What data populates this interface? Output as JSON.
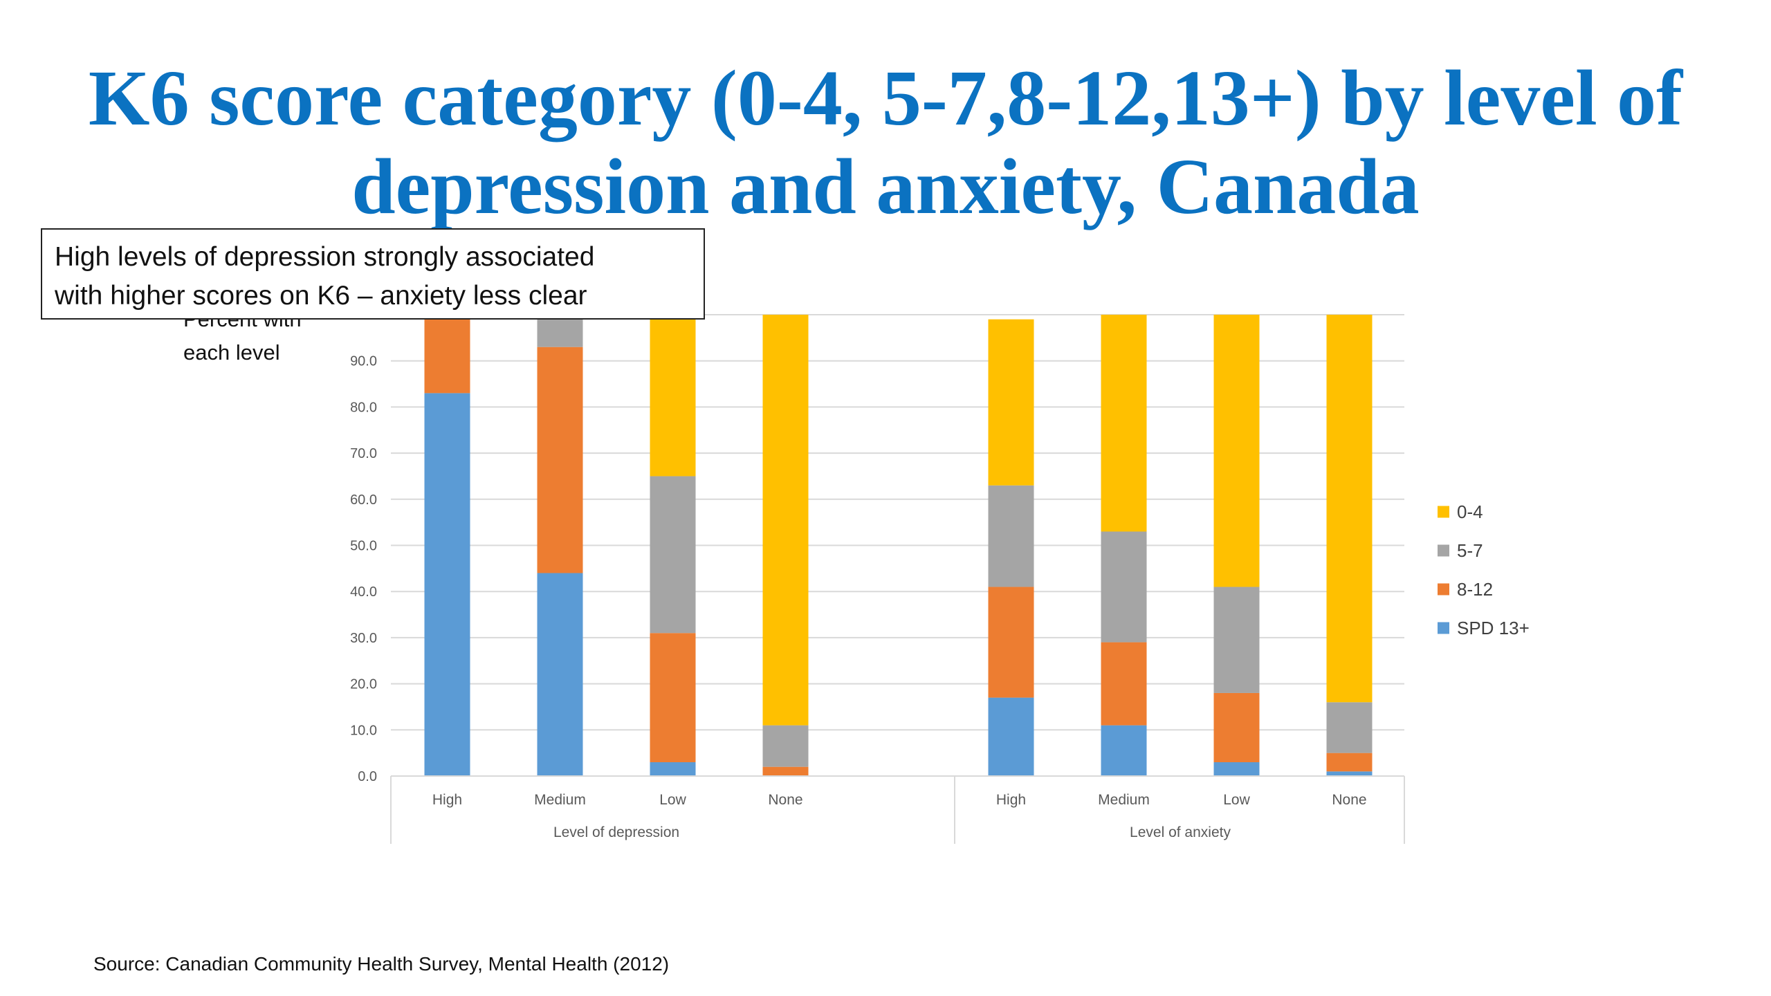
{
  "slide": {
    "title_line1": "K6 score category (0-4, 5-7,8-12,13+) by level of",
    "title_line2": "depression and anxiety, Canada",
    "callout_line1": "High levels of depression strongly associated",
    "callout_line2": "with higher scores on K6 – anxiety less clear",
    "source": "Source: Canadian Community Health Survey, Mental Health (2012)"
  },
  "chart_data": {
    "type": "bar",
    "stacked": true,
    "ylabel_line1": "Percent with",
    "ylabel_line2": "each level",
    "ylim": [
      0,
      100
    ],
    "yticks": [
      "0.0",
      "10.0",
      "20.0",
      "30.0",
      "40.0",
      "50.0",
      "60.0",
      "70.0",
      "80.0",
      "90.0"
    ],
    "ytick_values": [
      0,
      10,
      20,
      30,
      40,
      50,
      60,
      70,
      80,
      90
    ],
    "grid": true,
    "legend_position": "right",
    "groups": [
      {
        "name": "Level of depression",
        "categories": [
          "High",
          "Medium",
          "Low",
          "None"
        ]
      },
      {
        "name": "Level of anxiety",
        "categories": [
          "High",
          "Medium",
          "Low",
          "None"
        ]
      }
    ],
    "series": [
      {
        "name": "SPD 13+",
        "color": "#5B9BD5",
        "values": [
          83,
          44,
          3,
          0,
          17,
          11,
          3,
          1
        ]
      },
      {
        "name": "8-12",
        "color": "#ED7D31",
        "values": [
          17,
          49,
          28,
          2,
          24,
          18,
          15,
          4
        ]
      },
      {
        "name": "5-7",
        "color": "#A5A5A5",
        "values": [
          0,
          7,
          34,
          9,
          22,
          24,
          23,
          11
        ]
      },
      {
        "name": "0-4",
        "color": "#FFC000",
        "values": [
          0,
          0,
          35,
          89,
          36,
          47,
          59,
          84
        ]
      }
    ]
  }
}
